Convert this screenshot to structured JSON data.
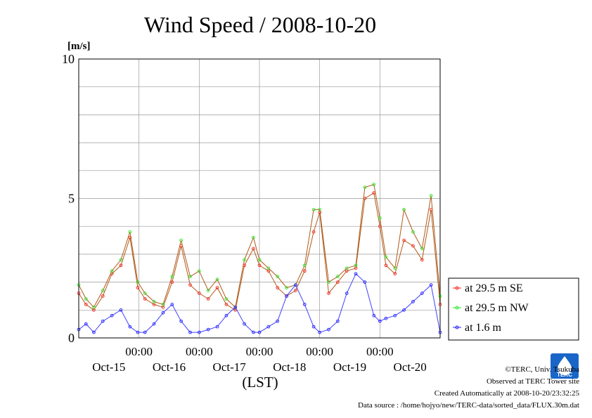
{
  "chart_data": {
    "type": "line",
    "title": "Wind Speed / 2008-10-20",
    "ylabel": "[m/s]",
    "xlabel": "(LST)",
    "ylim": [
      0,
      10
    ],
    "yticks": [
      "0",
      "5",
      "10"
    ],
    "x_time_labels": [
      "00:00",
      "00:00",
      "00:00",
      "00:00",
      "00:00"
    ],
    "x_date_labels": [
      "Oct-15",
      "Oct-16",
      "Oct-17",
      "Oct-18",
      "Oct-19",
      "Oct-20"
    ],
    "x_range_days": [
      0,
      6
    ],
    "grid": true,
    "legend_position": "right",
    "series": [
      {
        "name": "at 29.5 m SE",
        "color": "#ff2020",
        "x": [
          0,
          0.12,
          0.25,
          0.4,
          0.55,
          0.7,
          0.85,
          0.98,
          1.1,
          1.25,
          1.4,
          1.55,
          1.7,
          1.85,
          2.0,
          2.15,
          2.3,
          2.45,
          2.6,
          2.75,
          2.9,
          3.0,
          3.15,
          3.3,
          3.45,
          3.6,
          3.75,
          3.9,
          4.0,
          4.15,
          4.3,
          4.45,
          4.6,
          4.75,
          4.9,
          5.0,
          5.1,
          5.25,
          5.4,
          5.55,
          5.7,
          5.85,
          6.0
        ],
        "values": [
          1.6,
          1.2,
          1.0,
          1.5,
          2.3,
          2.6,
          3.6,
          1.8,
          1.4,
          1.2,
          1.1,
          2.0,
          3.3,
          1.9,
          1.6,
          1.4,
          1.8,
          1.2,
          1.0,
          2.6,
          3.2,
          2.6,
          2.4,
          1.8,
          1.5,
          1.7,
          2.4,
          3.8,
          4.5,
          1.6,
          2.0,
          2.4,
          2.5,
          5.0,
          5.2,
          4.0,
          2.6,
          2.3,
          3.5,
          3.3,
          2.8,
          4.6,
          1.2
        ]
      },
      {
        "name": "at 29.5 m NW",
        "color": "#20ee20",
        "x": [
          0,
          0.12,
          0.25,
          0.4,
          0.55,
          0.7,
          0.85,
          0.98,
          1.1,
          1.25,
          1.4,
          1.55,
          1.7,
          1.85,
          2.0,
          2.15,
          2.3,
          2.45,
          2.6,
          2.75,
          2.9,
          3.0,
          3.15,
          3.3,
          3.45,
          3.6,
          3.75,
          3.9,
          4.0,
          4.15,
          4.3,
          4.45,
          4.6,
          4.75,
          4.9,
          5.0,
          5.1,
          5.25,
          5.4,
          5.55,
          5.7,
          5.85,
          6.0
        ],
        "values": [
          1.9,
          1.4,
          1.1,
          1.7,
          2.4,
          2.8,
          3.8,
          2.0,
          1.6,
          1.3,
          1.2,
          2.2,
          3.5,
          2.2,
          2.4,
          1.7,
          2.1,
          1.4,
          1.1,
          2.8,
          3.6,
          2.8,
          2.5,
          2.2,
          1.8,
          1.9,
          2.6,
          4.6,
          4.6,
          2.0,
          2.2,
          2.5,
          2.6,
          5.4,
          5.5,
          4.3,
          2.9,
          2.5,
          4.6,
          3.8,
          3.2,
          5.1,
          1.5
        ]
      },
      {
        "name": "at 1.6 m",
        "color": "#2020ff",
        "x": [
          0,
          0.12,
          0.25,
          0.4,
          0.55,
          0.7,
          0.85,
          0.98,
          1.1,
          1.25,
          1.4,
          1.55,
          1.7,
          1.85,
          2.0,
          2.15,
          2.3,
          2.45,
          2.6,
          2.75,
          2.9,
          3.0,
          3.15,
          3.3,
          3.45,
          3.6,
          3.75,
          3.9,
          4.0,
          4.15,
          4.3,
          4.45,
          4.6,
          4.75,
          4.9,
          5.0,
          5.1,
          5.25,
          5.4,
          5.55,
          5.7,
          5.85,
          6.0
        ],
        "values": [
          0.3,
          0.5,
          0.2,
          0.6,
          0.8,
          1.0,
          0.4,
          0.2,
          0.2,
          0.5,
          0.9,
          1.2,
          0.6,
          0.2,
          0.2,
          0.3,
          0.4,
          0.8,
          1.1,
          0.5,
          0.2,
          0.2,
          0.4,
          0.6,
          1.5,
          1.9,
          1.2,
          0.4,
          0.2,
          0.3,
          0.6,
          1.6,
          2.3,
          2.0,
          0.8,
          0.6,
          0.7,
          0.8,
          1.0,
          1.3,
          1.6,
          1.9,
          0.2
        ]
      }
    ]
  },
  "credits": {
    "copyright": "©TERC, Univ. Tsukuba",
    "observed": "Observed at TERC Tower site",
    "created": "Created Automatically at 2008-10-20/23:32:25",
    "source": "Data source : /home/hojyo/new/TERC-data/sorted_data/FLUX.30m.dat"
  },
  "logo": {
    "text": "TERC",
    "color": "#1a66c8"
  }
}
